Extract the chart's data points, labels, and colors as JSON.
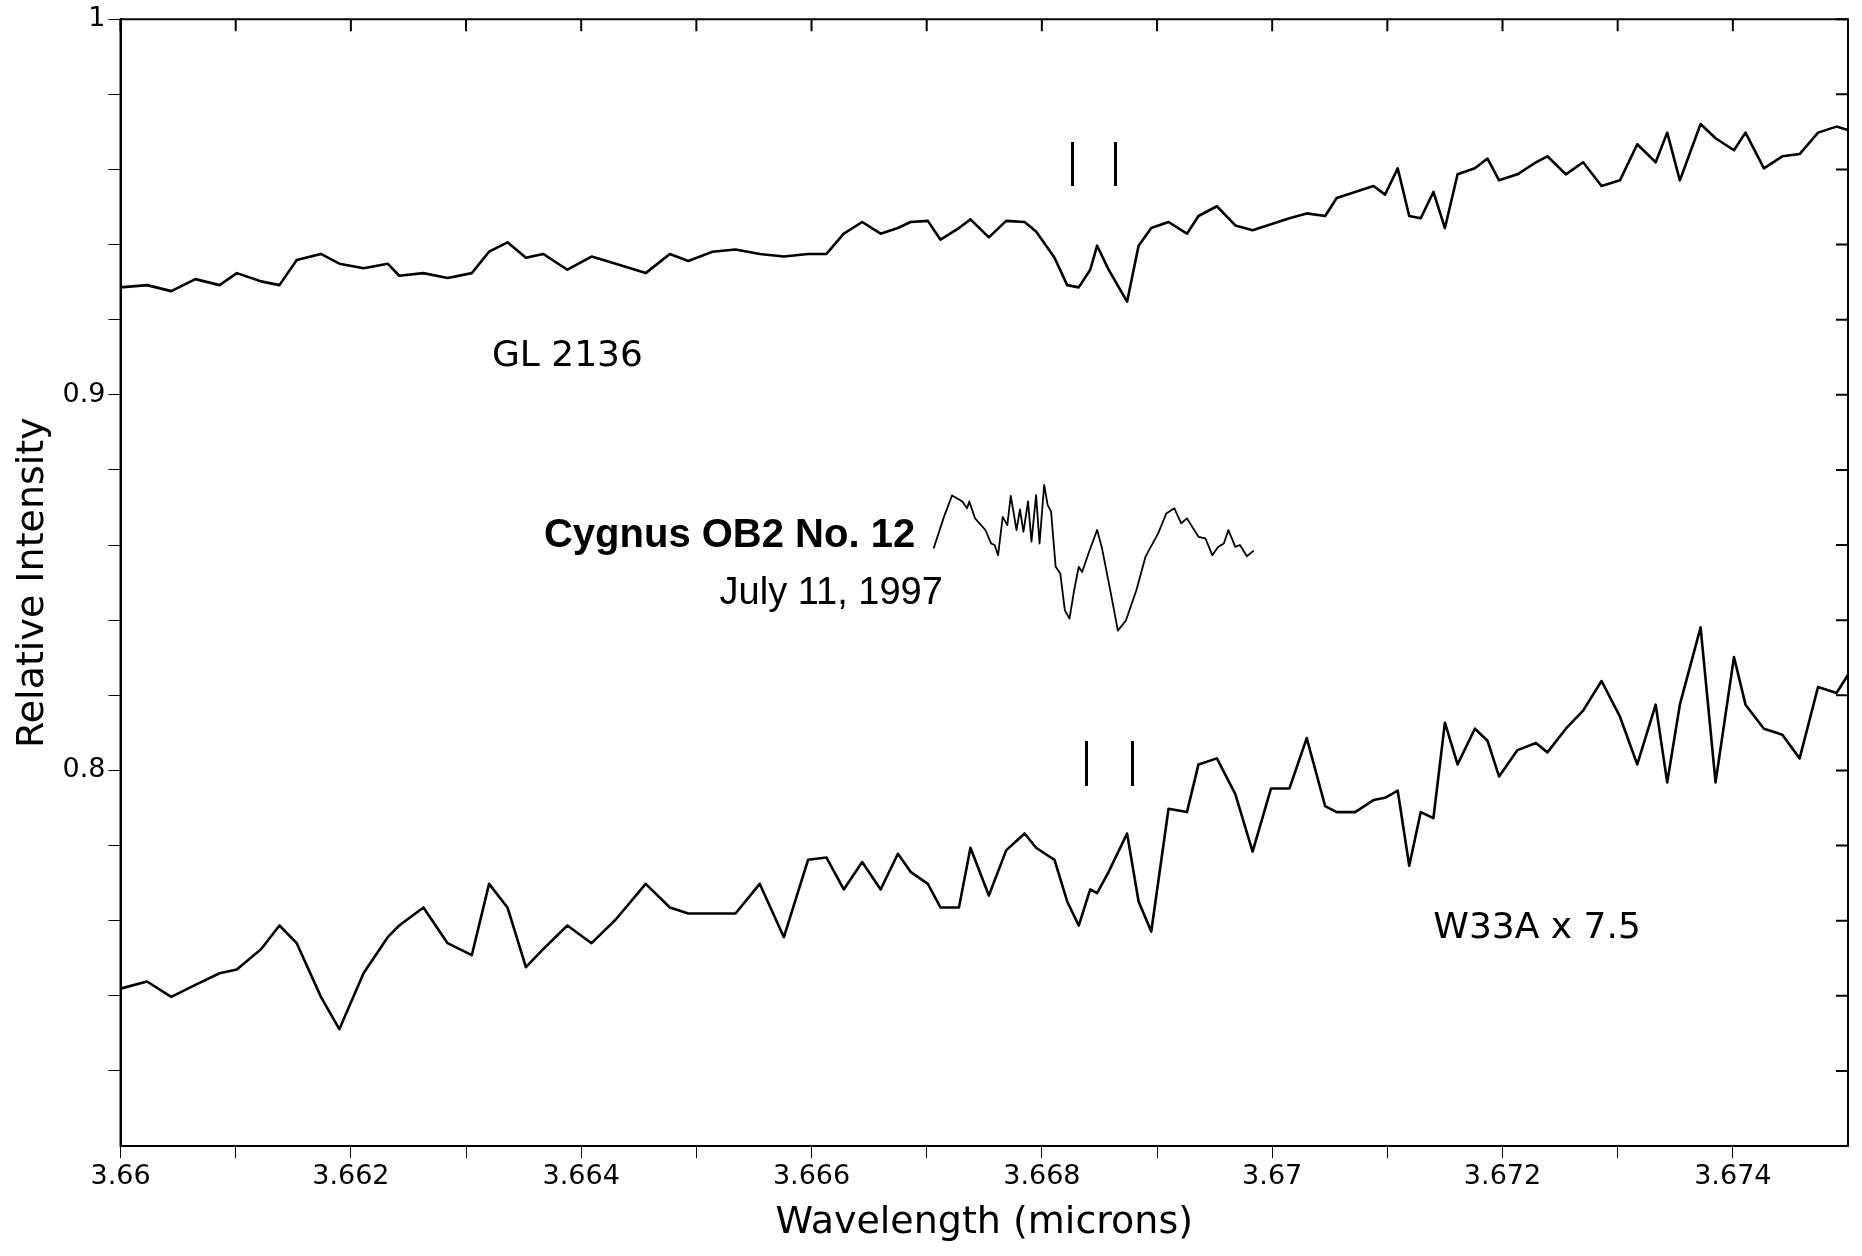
{
  "chart_data": {
    "type": "line",
    "xlabel": "Wavelength (microns)",
    "ylabel": "Relative Intensity",
    "xlim": [
      3.66,
      3.675
    ],
    "xticks": [
      3.66,
      {
        "value": 3.661,
        "label": null
      },
      3.662,
      {
        "value": 3.663,
        "label": null
      },
      3.664,
      {
        "value": 3.665,
        "label": null
      },
      3.666,
      {
        "value": 3.667,
        "label": null
      },
      3.668,
      {
        "value": 3.669,
        "label": null
      },
      3.67,
      {
        "value": 3.671,
        "label": null
      },
      3.672,
      {
        "value": 3.673,
        "label": null
      },
      3.674
    ],
    "ylim": [
      0.7,
      1
    ],
    "yticks": [
      {
        "value": 0.72,
        "label": null
      },
      {
        "value": 0.74,
        "label": null
      },
      {
        "value": 0.76,
        "label": null
      },
      {
        "value": 0.78,
        "label": null
      },
      {
        "value": 0.8,
        "label": "0.8"
      },
      {
        "value": 0.82,
        "label": null
      },
      {
        "value": 0.84,
        "label": null
      },
      {
        "value": 0.86,
        "label": null
      },
      {
        "value": 0.88,
        "label": null
      },
      {
        "value": 0.9,
        "label": "0.9"
      },
      {
        "value": 0.92,
        "label": null
      },
      {
        "value": 0.94,
        "label": null
      },
      {
        "value": 0.96,
        "label": null
      },
      {
        "value": 0.98,
        "label": null
      },
      1
    ],
    "grid": false,
    "legend": false,
    "marker": "none",
    "line_style": "solid",
    "annotations": [
      "July 11, 1997"
    ],
    "x": [
      3.66,
      3.66023,
      3.66044,
      3.66065,
      3.66086,
      3.66101,
      3.66122,
      3.66138,
      3.66153,
      3.66174,
      3.6619,
      3.66211,
      3.66232,
      3.66242,
      3.66263,
      3.66284,
      3.66305,
      3.6632,
      3.66336,
      3.66352,
      3.66367,
      3.66388,
      3.66409,
      3.6643,
      3.66456,
      3.66477,
      3.66493,
      3.66514,
      3.66534,
      3.66555,
      3.66576,
      3.66597,
      3.66613,
      3.66628,
      3.66644,
      3.6666,
      3.66675,
      3.66686,
      3.66701,
      3.66712,
      3.66728,
      3.66738,
      3.66754,
      3.66769,
      3.66785,
      3.66795,
      3.66811,
      3.66822,
      3.66832,
      3.66842,
      3.66848,
      3.66858,
      3.66874,
      3.66884,
      3.66895,
      3.6691,
      3.66926,
      3.66936,
      3.66952,
      3.66968,
      3.66983,
      3.66999,
      3.67015,
      3.6703,
      3.67046,
      3.67056,
      3.67072,
      3.67088,
      3.67098,
      3.67109,
      3.67119,
      3.67129,
      3.6714,
      3.6715,
      3.67161,
      3.67176,
      3.67187,
      3.67197,
      3.67213,
      3.67229,
      3.67239,
      3.67255,
      3.6727,
      3.67286,
      3.67302,
      3.67317,
      3.67333,
      3.67343,
      3.67354,
      3.67372,
      3.67385,
      3.67401,
      3.67411,
      3.67427,
      3.67443,
      3.67458,
      3.67474,
      3.6749,
      3.675
    ],
    "series": [
      {
        "name": "GL 2136",
        "color": "#000000",
        "values": [
          0.9286,
          0.9292,
          0.9276,
          0.9308,
          0.9292,
          0.9324,
          0.9302,
          0.9292,
          0.9359,
          0.9375,
          0.9349,
          0.9337,
          0.9349,
          0.9317,
          0.9324,
          0.9311,
          0.9324,
          0.9381,
          0.9406,
          0.9365,
          0.9375,
          0.9333,
          0.9368,
          0.9349,
          0.9324,
          0.9375,
          0.9356,
          0.9381,
          0.9387,
          0.9375,
          0.9368,
          0.9375,
          0.9375,
          0.9429,
          0.946,
          0.9429,
          0.9444,
          0.946,
          0.9463,
          0.9413,
          0.9444,
          0.9467,
          0.9419,
          0.9463,
          0.946,
          0.9435,
          0.9365,
          0.9292,
          0.9286,
          0.9333,
          0.9397,
          0.9333,
          0.9248,
          0.9397,
          0.9444,
          0.946,
          0.9429,
          0.9476,
          0.9502,
          0.9451,
          0.9438,
          0.9454,
          0.947,
          0.9483,
          0.9476,
          0.9524,
          0.954,
          0.9556,
          0.9533,
          0.9603,
          0.9476,
          0.947,
          0.954,
          0.9444,
          0.9587,
          0.9603,
          0.9629,
          0.9571,
          0.9587,
          0.9619,
          0.9635,
          0.9587,
          0.9619,
          0.9556,
          0.9571,
          0.9667,
          0.9619,
          0.9698,
          0.9571,
          0.9721,
          0.9683,
          0.9651,
          0.9698,
          0.9603,
          0.9635,
          0.9641,
          0.9698,
          0.9714,
          0.9705
        ]
      },
      {
        "name": "Cygnus OB2 No. 12",
        "color": "#000000",
        "x": [
          3.66706,
          3.66715,
          3.66722,
          3.66731,
          3.66735,
          3.66737,
          3.66742,
          3.66751,
          3.66756,
          3.66759,
          3.66762,
          3.66766,
          3.6677,
          3.66773,
          3.66778,
          3.66781,
          3.66784,
          3.66788,
          3.66791,
          3.66795,
          3.66798,
          3.66802,
          3.66805,
          3.66808,
          3.66812,
          3.66816,
          3.6682,
          3.66824,
          3.66828,
          3.66832,
          3.66835,
          3.66841,
          3.66848,
          3.66852,
          3.6686,
          3.66866,
          3.66873,
          3.66882,
          3.6689,
          3.66901,
          3.66908,
          3.66915,
          3.66921,
          3.66926,
          3.66936,
          3.66942,
          3.66948,
          3.66953,
          3.66958,
          3.66962,
          3.66968,
          3.66972,
          3.66978,
          3.66984
        ],
        "values": [
          0.8591,
          0.8675,
          0.8732,
          0.8716,
          0.8698,
          0.8716,
          0.8671,
          0.864,
          0.8604,
          0.86,
          0.8573,
          0.8675,
          0.8653,
          0.8731,
          0.864,
          0.8695,
          0.8635,
          0.8716,
          0.8609,
          0.8733,
          0.8604,
          0.876,
          0.8707,
          0.8689,
          0.8542,
          0.8524,
          0.8426,
          0.8404,
          0.8479,
          0.8542,
          0.8528,
          0.8582,
          0.864,
          0.8595,
          0.847,
          0.8372,
          0.8399,
          0.8479,
          0.8569,
          0.8631,
          0.8684,
          0.8698,
          0.8658,
          0.8671,
          0.8622,
          0.8618,
          0.8573,
          0.8595,
          0.8604,
          0.864,
          0.8595,
          0.86,
          0.857,
          0.8585
        ]
      },
      {
        "name": "W33A x 7.5",
        "color": "#000000",
        "values": [
          0.7419,
          0.7438,
          0.7397,
          0.7429,
          0.746,
          0.747,
          0.7524,
          0.7587,
          0.754,
          0.7397,
          0.7311,
          0.746,
          0.7556,
          0.7587,
          0.7635,
          0.754,
          0.7508,
          0.7698,
          0.7635,
          0.7476,
          0.7524,
          0.7587,
          0.754,
          0.7603,
          0.7698,
          0.7635,
          0.7619,
          0.7619,
          0.7619,
          0.7698,
          0.7556,
          0.7762,
          0.7768,
          0.7683,
          0.7756,
          0.7683,
          0.7778,
          0.773,
          0.7698,
          0.7635,
          0.7635,
          0.7794,
          0.7667,
          0.7787,
          0.7832,
          0.7794,
          0.7762,
          0.7651,
          0.7587,
          0.7683,
          0.7673,
          0.773,
          0.7832,
          0.7651,
          0.7571,
          0.7898,
          0.7889,
          0.8016,
          0.8032,
          0.7937,
          0.7784,
          0.7952,
          0.7952,
          0.8086,
          0.7905,
          0.7889,
          0.7889,
          0.7921,
          0.7927,
          0.7946,
          0.7746,
          0.7889,
          0.7873,
          0.8127,
          0.8016,
          0.8111,
          0.8079,
          0.7984,
          0.8054,
          0.8073,
          0.8048,
          0.8111,
          0.8159,
          0.8238,
          0.8143,
          0.8016,
          0.8175,
          0.7968,
          0.8175,
          0.8381,
          0.7968,
          0.8302,
          0.8175,
          0.8111,
          0.8095,
          0.8032,
          0.8222,
          0.8206,
          0.8254
        ]
      }
    ]
  }
}
